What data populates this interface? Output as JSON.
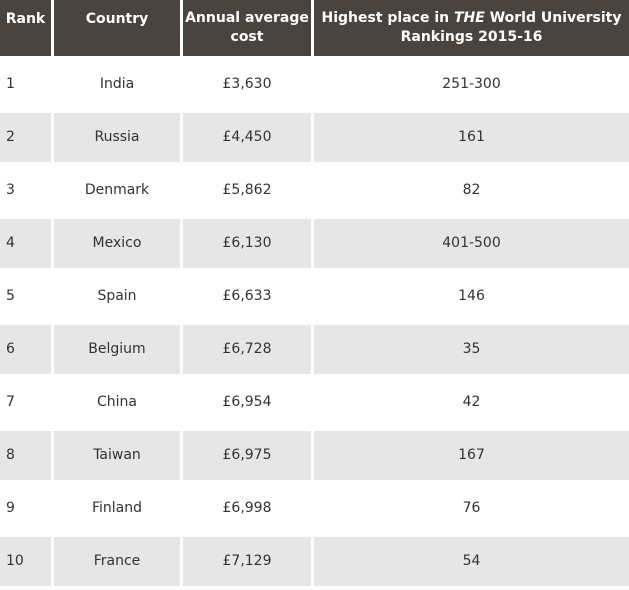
{
  "table": {
    "headers": {
      "rank": "Rank",
      "country": "Country",
      "cost": "Annual average cost",
      "highest_pre": "Highest place in ",
      "highest_em": "THE",
      "highest_post": " World University Rankings 2015-16"
    },
    "rows": [
      {
        "rank": "1",
        "country": "India",
        "cost": "£3,630",
        "place": "251-300"
      },
      {
        "rank": "2",
        "country": "Russia",
        "cost": "£4,450",
        "place": "161"
      },
      {
        "rank": "3",
        "country": "Denmark",
        "cost": "£5,862",
        "place": "82"
      },
      {
        "rank": "4",
        "country": "Mexico",
        "cost": "£6,130",
        "place": "401-500"
      },
      {
        "rank": "5",
        "country": "Spain",
        "cost": "£6,633",
        "place": "146"
      },
      {
        "rank": "6",
        "country": "Belgium",
        "cost": "£6,728",
        "place": "35"
      },
      {
        "rank": "7",
        "country": "China",
        "cost": "£6,954",
        "place": "42"
      },
      {
        "rank": "8",
        "country": "Taiwan",
        "cost": "£6,975",
        "place": "167"
      },
      {
        "rank": "9",
        "country": "Finland",
        "cost": "£6,998",
        "place": "76"
      },
      {
        "rank": "10",
        "country": "France",
        "cost": "£7,129",
        "place": "54"
      }
    ],
    "colors": {
      "header_bg": "#4a4440",
      "row_alt_bg": "#e6e6e6"
    }
  }
}
